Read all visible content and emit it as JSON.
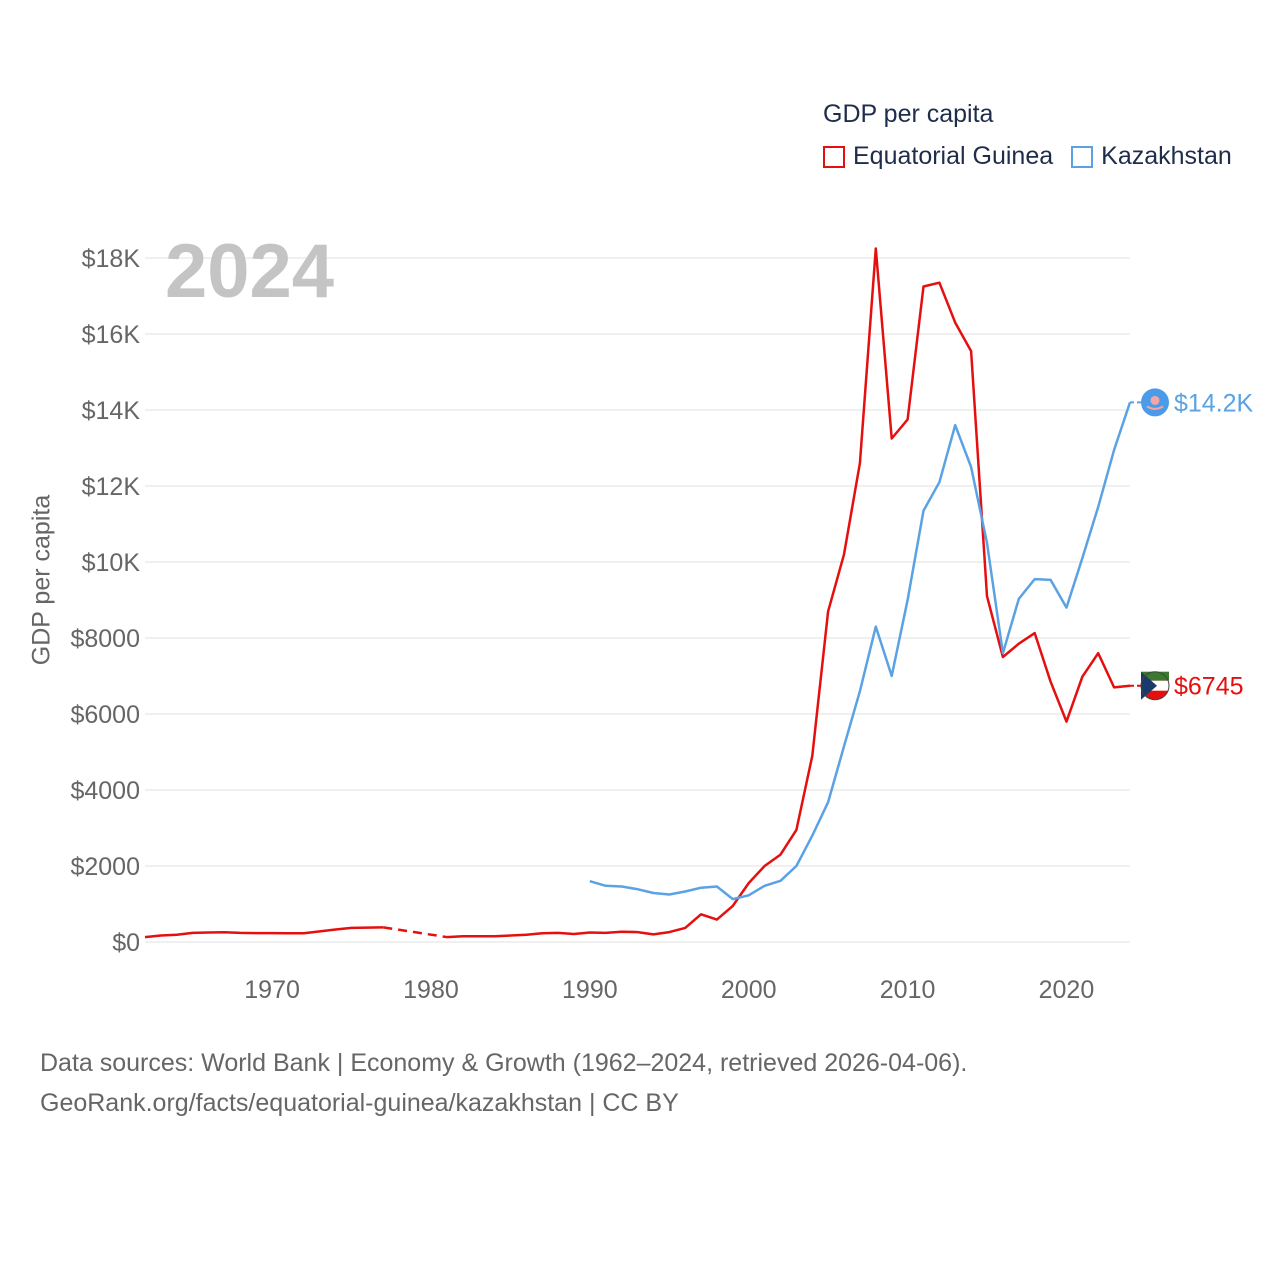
{
  "legend": {
    "title": "GDP per capita",
    "items": [
      {
        "name": "Equatorial Guinea",
        "color": "#e60f0f"
      },
      {
        "name": "Kazakhstan",
        "color": "#5aa2e3"
      }
    ]
  },
  "year_label": "2024",
  "source": {
    "line1": "Data sources: World Bank | Economy & Growth (1962–2024, retrieved 2026-04-06).",
    "line2": "GeoRank.org/facts/equatorial-guinea/kazakhstan | CC BY"
  },
  "chart_data": {
    "type": "line",
    "title": "GDP per capita",
    "xlabel": "",
    "ylabel": "GDP per capita",
    "xlim": [
      1962,
      2024
    ],
    "ylim": [
      0,
      18000
    ],
    "x_ticks": [
      1970,
      1980,
      1990,
      2000,
      2010,
      2020
    ],
    "x_tick_labels": [
      "1970",
      "1980",
      "1990",
      "2000",
      "2010",
      "2020"
    ],
    "y_ticks": [
      0,
      2000,
      4000,
      6000,
      8000,
      10000,
      12000,
      14000,
      16000,
      18000
    ],
    "y_tick_labels": [
      "$0",
      "$2000",
      "$4000",
      "$6000",
      "$8000",
      "$10K",
      "$12K",
      "$14K",
      "$16K",
      "$18K"
    ],
    "grid": true,
    "series": [
      {
        "name": "Equatorial Guinea",
        "color": "#e60f0f",
        "end_label": "$6745",
        "gap": [
          1977,
          1981
        ],
        "points": [
          [
            1962,
            130
          ],
          [
            1963,
            170
          ],
          [
            1964,
            190
          ],
          [
            1965,
            240
          ],
          [
            1966,
            250
          ],
          [
            1967,
            255
          ],
          [
            1968,
            240
          ],
          [
            1969,
            235
          ],
          [
            1970,
            235
          ],
          [
            1971,
            230
          ],
          [
            1972,
            230
          ],
          [
            1973,
            280
          ],
          [
            1974,
            330
          ],
          [
            1975,
            370
          ],
          [
            1976,
            380
          ],
          [
            1977,
            385
          ],
          [
            1981,
            130
          ],
          [
            1982,
            150
          ],
          [
            1983,
            150
          ],
          [
            1984,
            150
          ],
          [
            1985,
            170
          ],
          [
            1986,
            190
          ],
          [
            1987,
            230
          ],
          [
            1988,
            240
          ],
          [
            1989,
            210
          ],
          [
            1990,
            250
          ],
          [
            1991,
            240
          ],
          [
            1992,
            270
          ],
          [
            1993,
            260
          ],
          [
            1994,
            200
          ],
          [
            1995,
            260
          ],
          [
            1996,
            370
          ],
          [
            1997,
            730
          ],
          [
            1998,
            590
          ],
          [
            1999,
            950
          ],
          [
            2000,
            1550
          ],
          [
            2001,
            2000
          ],
          [
            2002,
            2300
          ],
          [
            2003,
            2950
          ],
          [
            2004,
            4900
          ],
          [
            2005,
            8700
          ],
          [
            2006,
            10200
          ],
          [
            2007,
            12600
          ],
          [
            2008,
            18250
          ],
          [
            2009,
            13250
          ],
          [
            2010,
            13750
          ],
          [
            2011,
            17250
          ],
          [
            2012,
            17350
          ],
          [
            2013,
            16300
          ],
          [
            2014,
            15550
          ],
          [
            2015,
            9100
          ],
          [
            2016,
            7500
          ],
          [
            2017,
            7850
          ],
          [
            2018,
            8130
          ],
          [
            2019,
            6850
          ],
          [
            2020,
            5800
          ],
          [
            2021,
            6980
          ],
          [
            2022,
            7600
          ],
          [
            2023,
            6700
          ],
          [
            2024,
            6745
          ]
        ]
      },
      {
        "name": "Kazakhstan",
        "color": "#5aa2e3",
        "end_label": "$14.2K",
        "points": [
          [
            1990,
            1600
          ],
          [
            1991,
            1480
          ],
          [
            1992,
            1460
          ],
          [
            1993,
            1390
          ],
          [
            1994,
            1290
          ],
          [
            1995,
            1250
          ],
          [
            1996,
            1330
          ],
          [
            1997,
            1430
          ],
          [
            1998,
            1460
          ],
          [
            1999,
            1130
          ],
          [
            2000,
            1230
          ],
          [
            2001,
            1480
          ],
          [
            2002,
            1610
          ],
          [
            2003,
            2000
          ],
          [
            2004,
            2800
          ],
          [
            2005,
            3680
          ],
          [
            2006,
            5150
          ],
          [
            2007,
            6600
          ],
          [
            2008,
            8300
          ],
          [
            2009,
            7000
          ],
          [
            2010,
            9000
          ],
          [
            2011,
            11350
          ],
          [
            2012,
            12100
          ],
          [
            2013,
            13600
          ],
          [
            2014,
            12500
          ],
          [
            2015,
            10500
          ],
          [
            2016,
            7600
          ],
          [
            2017,
            9030
          ],
          [
            2018,
            9550
          ],
          [
            2019,
            9530
          ],
          [
            2020,
            8800
          ],
          [
            2021,
            10100
          ],
          [
            2022,
            11450
          ],
          [
            2023,
            12950
          ],
          [
            2024,
            14200
          ]
        ]
      }
    ]
  }
}
